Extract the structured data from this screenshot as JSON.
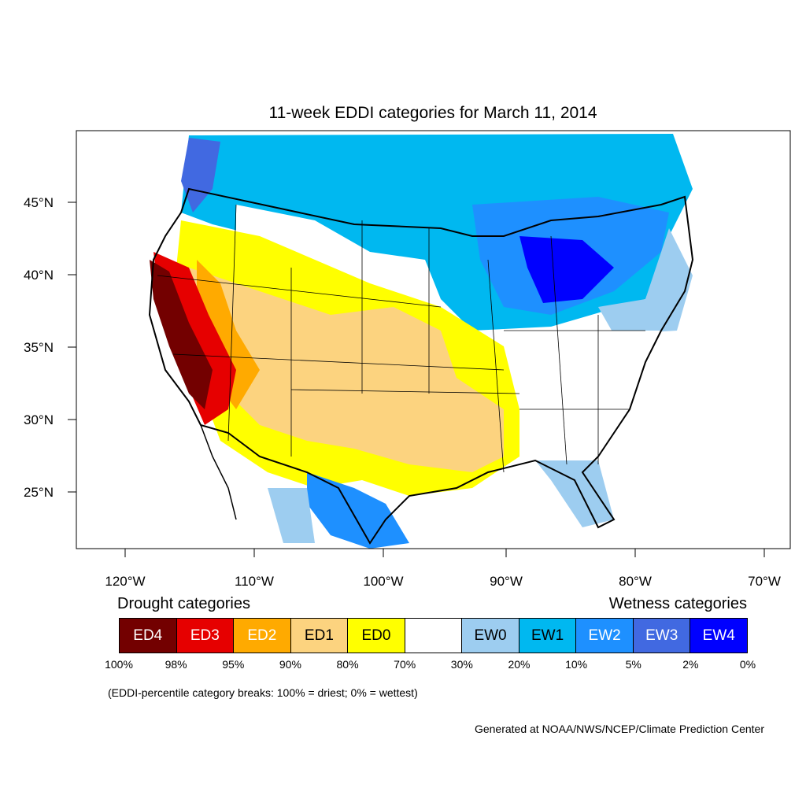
{
  "title": "11-week EDDI categories for March 11, 2014",
  "axes": {
    "lon_ticks": [
      "120°W",
      "110°W",
      "100°W",
      "90°W",
      "80°W",
      "70°W"
    ],
    "lat_ticks": [
      "45°N",
      "40°N",
      "35°N",
      "30°N",
      "25°N"
    ]
  },
  "legend": {
    "drought_heading": "Drought categories",
    "wetness_heading": "Wetness categories",
    "categories": [
      {
        "label": "ED4",
        "color": "#730000",
        "text_color": "#ffffff"
      },
      {
        "label": "ED3",
        "color": "#e60000",
        "text_color": "#ffffff"
      },
      {
        "label": "ED2",
        "color": "#ffaa00",
        "text_color": "#ffffff"
      },
      {
        "label": "ED1",
        "color": "#fcd37f",
        "text_color": "#000000"
      },
      {
        "label": "ED0",
        "color": "#ffff00",
        "text_color": "#000000"
      },
      {
        "label": "",
        "color": "#ffffff",
        "text_color": "#000000"
      },
      {
        "label": "EW0",
        "color": "#9dcdf0",
        "text_color": "#000000"
      },
      {
        "label": "EW1",
        "color": "#00b8f0",
        "text_color": "#000000"
      },
      {
        "label": "EW2",
        "color": "#1e90ff",
        "text_color": "#ffffff"
      },
      {
        "label": "EW3",
        "color": "#4169e1",
        "text_color": "#ffffff"
      },
      {
        "label": "EW4",
        "color": "#0000ff",
        "text_color": "#ffffff"
      }
    ],
    "breaks": [
      "100%",
      "98%",
      "95%",
      "90%",
      "80%",
      "70%",
      "30%",
      "20%",
      "10%",
      "5%",
      "2%",
      "0%"
    ]
  },
  "note": "(EDDI-percentile category breaks: 100% = driest; 0% = wettest)",
  "credit": "Generated at NOAA/NWS/NCEP/Climate Prediction Center"
}
